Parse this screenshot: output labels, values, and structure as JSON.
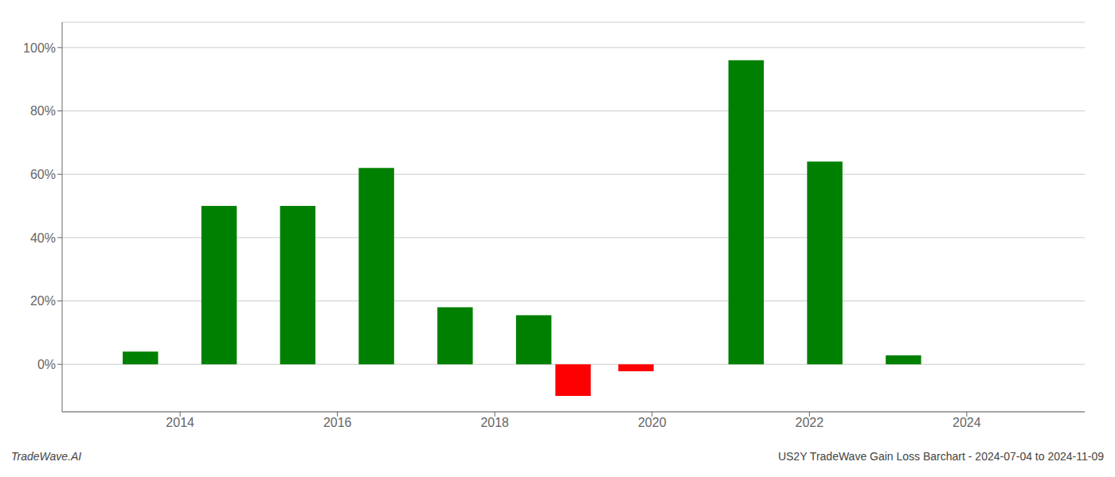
{
  "chart_data": {
    "type": "bar",
    "title": "US2Y TradeWave Gain Loss Barchart - 2024-07-04 to 2024-11-09",
    "annotations": [
      "TradeWave.AI"
    ],
    "x": [
      2013.5,
      2014.5,
      2015.5,
      2016.5,
      2017.5,
      2018.5,
      2019.0,
      2019.8,
      2021.2,
      2022.2,
      2023.2
    ],
    "values": [
      0.04,
      0.5,
      0.5,
      0.62,
      0.18,
      0.155,
      -0.1,
      -0.022,
      0.96,
      0.64,
      0.028
    ],
    "colors": [
      "#008000",
      "#008000",
      "#008000",
      "#008000",
      "#008000",
      "#008000",
      "#ff0000",
      "#ff0000",
      "#008000",
      "#008000",
      "#008000"
    ],
    "xlim": [
      2012.5,
      2025.5
    ],
    "xticks": [
      2014,
      2016,
      2018,
      2020,
      2022,
      2024
    ],
    "ylim": [
      -0.15,
      1.08
    ],
    "yticks": [
      {
        "value": 0.0,
        "label": "0%"
      },
      {
        "value": 0.2,
        "label": "20%"
      },
      {
        "value": 0.4,
        "label": "40%"
      },
      {
        "value": 0.6,
        "label": "60%"
      },
      {
        "value": 0.8,
        "label": "80%"
      },
      {
        "value": 1.0,
        "label": "100%"
      }
    ],
    "grid": true
  }
}
